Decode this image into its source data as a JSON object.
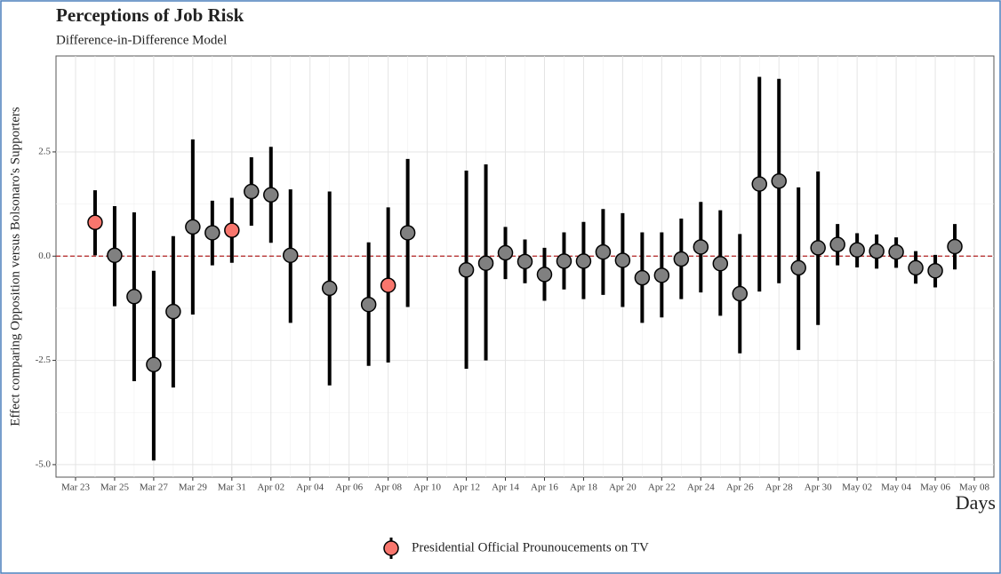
{
  "chart_data": {
    "type": "errorbar",
    "title": "Perceptions of Job Risk",
    "subtitle": "Difference-in-Difference Model",
    "y_label": "Effect comparing Opposition versus Bolsonaro's Supporters",
    "x_label": "Days",
    "x": [
      "Mar 24",
      "Mar 25",
      "Mar 26",
      "Mar 27",
      "Mar 28",
      "Mar 29",
      "Mar 30",
      "Mar 31",
      "Apr 01",
      "Apr 02",
      "Apr 03",
      "Apr 05",
      "Apr 07",
      "Apr 08",
      "Apr 09",
      "Apr 12",
      "Apr 13",
      "Apr 14",
      "Apr 15",
      "Apr 16",
      "Apr 17",
      "Apr 18",
      "Apr 19",
      "Apr 20",
      "Apr 21",
      "Apr 22",
      "Apr 23",
      "Apr 24",
      "Apr 25",
      "Apr 26",
      "Apr 27",
      "Apr 28",
      "Apr 29",
      "Apr 30",
      "May 01",
      "May 02",
      "May 03",
      "May 04",
      "May 05",
      "May 06",
      "May 07"
    ],
    "values": [
      0.81,
      0.02,
      -0.97,
      -2.6,
      -1.33,
      0.7,
      0.56,
      0.62,
      1.55,
      1.47,
      0.02,
      -0.77,
      -1.16,
      -0.7,
      0.56,
      -0.33,
      -0.17,
      0.08,
      -0.13,
      -0.44,
      -0.12,
      -0.12,
      0.1,
      -0.1,
      -0.52,
      -0.46,
      -0.07,
      0.22,
      -0.18,
      -0.9,
      1.73,
      1.8,
      -0.28,
      0.2,
      0.28,
      0.15,
      0.12,
      0.1,
      -0.28,
      -0.35,
      0.23
    ],
    "lower": [
      0.02,
      -1.2,
      -3.0,
      -4.9,
      -3.15,
      -1.4,
      -0.22,
      -0.16,
      0.73,
      0.32,
      -1.6,
      -3.1,
      -2.63,
      -2.55,
      -1.22,
      -2.7,
      -2.5,
      -0.55,
      -0.65,
      -1.07,
      -0.8,
      -1.03,
      -0.93,
      -1.22,
      -1.6,
      -1.47,
      -1.03,
      -0.87,
      -1.43,
      -2.33,
      -0.85,
      -0.65,
      -2.25,
      -1.65,
      -0.22,
      -0.27,
      -0.3,
      -0.28,
      -0.66,
      -0.75,
      -0.32
    ],
    "upper": [
      1.58,
      1.2,
      1.05,
      -0.35,
      0.48,
      2.8,
      1.33,
      1.4,
      2.37,
      2.62,
      1.6,
      1.55,
      0.33,
      1.17,
      2.33,
      2.05,
      2.2,
      0.7,
      0.4,
      0.2,
      0.57,
      0.82,
      1.13,
      1.03,
      0.57,
      0.57,
      0.9,
      1.3,
      1.1,
      0.53,
      4.3,
      4.25,
      1.65,
      2.03,
      0.77,
      0.55,
      0.52,
      0.45,
      0.12,
      0.03,
      0.77
    ],
    "highlight": [
      true,
      false,
      false,
      false,
      false,
      false,
      false,
      true,
      false,
      false,
      false,
      false,
      false,
      true,
      false,
      false,
      false,
      false,
      false,
      false,
      false,
      false,
      false,
      false,
      false,
      false,
      false,
      false,
      false,
      false,
      false,
      false,
      false,
      false,
      false,
      false,
      false,
      false,
      false,
      false,
      false
    ],
    "color": "#808080",
    "highlight_color": "#f8766d",
    "legend": {
      "label": "Presidential Official Prounoucements on TV",
      "position": "bottom"
    },
    "reference_line": {
      "value": 0,
      "color": "#b22222"
    },
    "xlim": [
      "Mar 22",
      "May 09"
    ],
    "xticks": [
      "Mar 23",
      "Mar 25",
      "Mar 27",
      "Mar 29",
      "Mar 31",
      "Apr 02",
      "Apr 04",
      "Apr 06",
      "Apr 08",
      "Apr 10",
      "Apr 12",
      "Apr 14",
      "Apr 16",
      "Apr 18",
      "Apr 20",
      "Apr 22",
      "Apr 24",
      "Apr 26",
      "Apr 28",
      "Apr 30",
      "May 02",
      "May 04",
      "May 06",
      "May 08"
    ],
    "ylim": [
      -5.3,
      4.8
    ],
    "yticks": [
      {
        "value": -5,
        "label": "-5.0"
      },
      -2.5,
      {
        "value": 0,
        "label": "0.0"
      },
      2.5
    ],
    "grid": true
  }
}
